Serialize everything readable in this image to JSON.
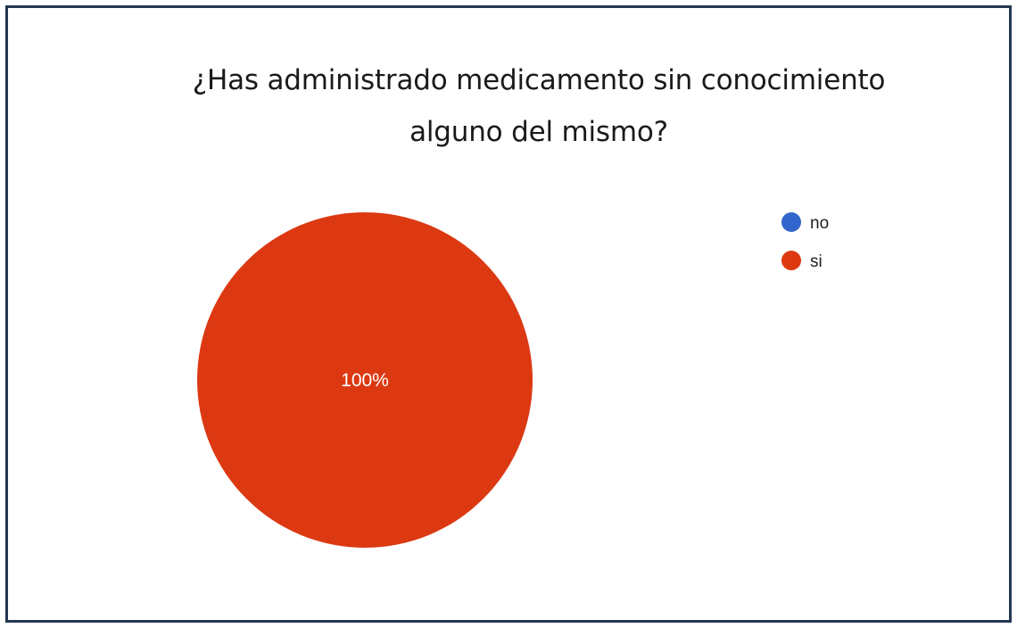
{
  "chart_data": {
    "type": "pie",
    "title_lines": [
      "¿Has administrado medicamento sin conocimiento",
      "alguno del mismo?"
    ],
    "categories": [
      "no",
      "si"
    ],
    "values": [
      0,
      100
    ],
    "slice_labels": [
      "",
      "100%"
    ],
    "colors": [
      "#3366cc",
      "#dc3912"
    ],
    "legend_position": "right"
  }
}
